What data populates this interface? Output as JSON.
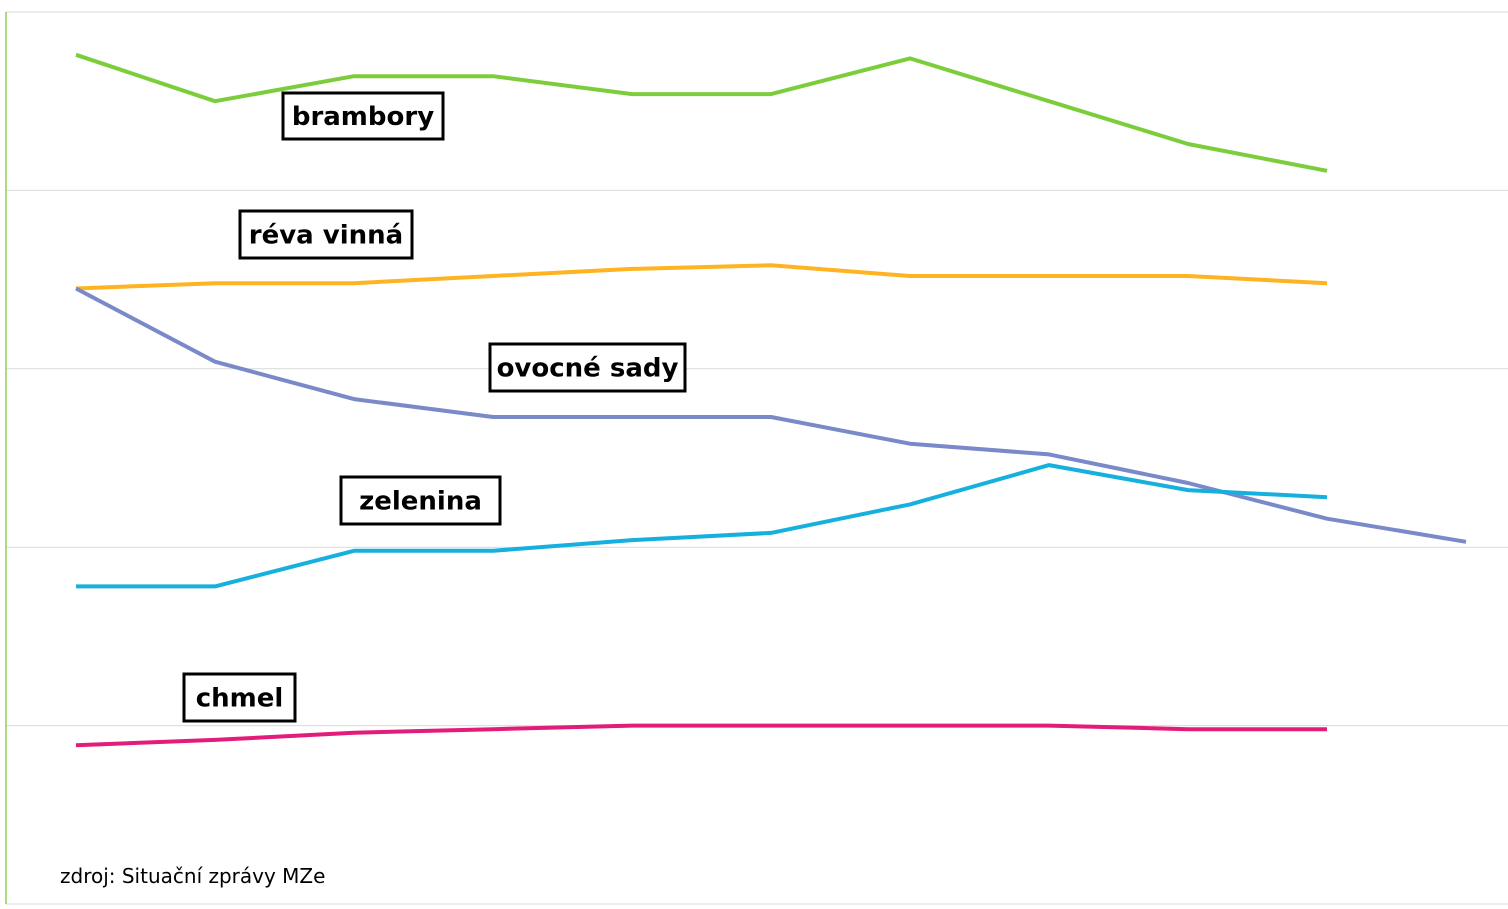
{
  "chart_data": {
    "type": "line",
    "title": "",
    "xlabel": "",
    "ylabel": "",
    "x": [
      1,
      2,
      3,
      4,
      5,
      6,
      7,
      8,
      9,
      10,
      11
    ],
    "ylim": [
      0,
      5
    ],
    "grid": true,
    "legend": "none",
    "series": [
      {
        "name": "brambory",
        "color": "#7ccd3c",
        "values": [
          4.76,
          4.5,
          4.64,
          4.64,
          4.54,
          4.54,
          4.74,
          4.5,
          4.26,
          4.11,
          null
        ]
      },
      {
        "name": "réva vinná",
        "color": "#ffb320",
        "values": [
          3.45,
          3.48,
          3.48,
          3.52,
          3.56,
          3.58,
          3.52,
          3.52,
          3.52,
          3.48,
          null
        ]
      },
      {
        "name": "ovocné sady",
        "color": "#7a89c8",
        "values": [
          3.45,
          3.04,
          2.83,
          2.73,
          2.73,
          2.73,
          2.58,
          2.52,
          2.36,
          2.16,
          2.03
        ]
      },
      {
        "name": "zelenina",
        "color": "#16b0de",
        "values": [
          1.78,
          1.78,
          1.98,
          1.98,
          2.04,
          2.08,
          2.24,
          2.46,
          2.32,
          2.28,
          null
        ]
      },
      {
        "name": "chmel",
        "color": "#e31b7a",
        "values": [
          0.89,
          0.92,
          0.96,
          0.98,
          1.0,
          1.0,
          1.0,
          1.0,
          0.98,
          0.98,
          null
        ]
      }
    ],
    "source_note": "zdroj: Situační zprávy MZe"
  }
}
